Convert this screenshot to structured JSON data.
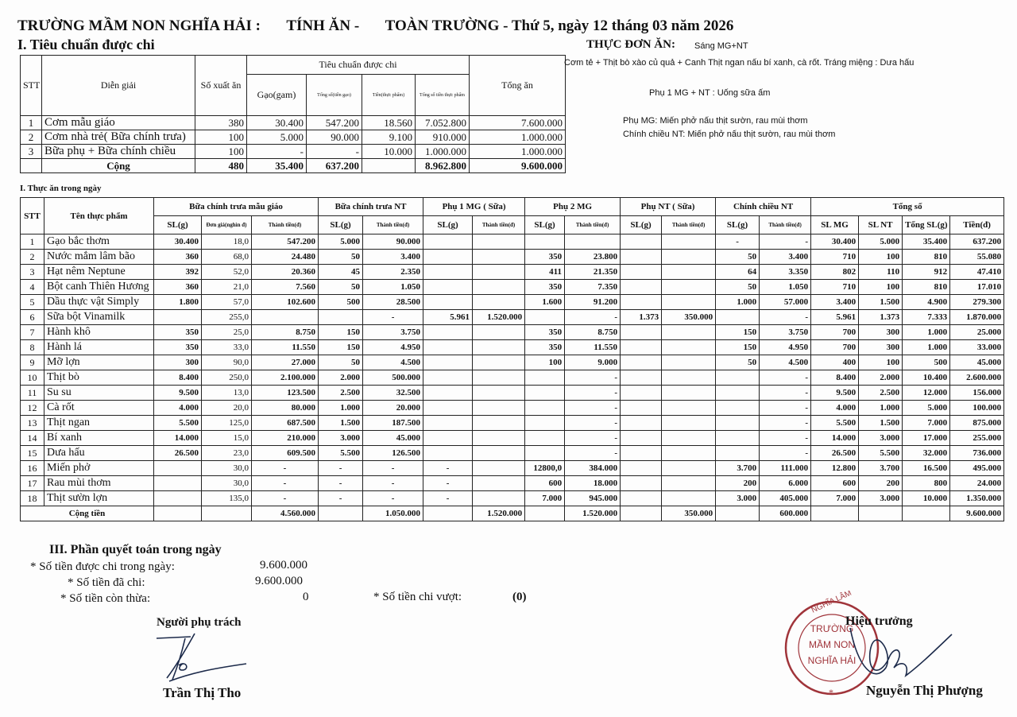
{
  "header": {
    "school": "TRƯỜNG MẦM NON NGHĨA HẢI  :",
    "label": "TÍNH ĂN -",
    "scope": "TOÀN TRƯỜNG - Thứ 5, ngày 12 tháng 03 năm 2026"
  },
  "section1": {
    "title": "I. Tiêu chuẩn được chi",
    "headers": {
      "stt": "STT",
      "dien_giai": "Diễn giải",
      "so_xuat": "Số xuất ăn",
      "group": "Tiêu chuẩn được chi",
      "gao": "Gạo(gam)",
      "tong_gao": "Tổng số(tiền gạo)",
      "tien_tp": "Tiền(thực phẩm)",
      "tong_tp": "Tổng số tiền thực phẩm",
      "tong_an": "Tổng ăn"
    },
    "rows": [
      [
        "1",
        "Cơm mẫu giáo",
        "380",
        "30.400",
        "547.200",
        "18.560",
        "7.052.800",
        "7.600.000"
      ],
      [
        "2",
        "Cơm nhà trẻ( Bữa chính trưa)",
        "100",
        "5.000",
        "90.000",
        "9.100",
        "910.000",
        "1.000.000"
      ],
      [
        "3",
        "Bữa phụ + Bữa chính chiều",
        "100",
        "-",
        "-",
        "10.000",
        "1.000.000",
        "1.000.000"
      ]
    ],
    "total": [
      "Cộng",
      "480",
      "35.400",
      "637.200",
      "",
      "8.962.800",
      "9.600.000"
    ]
  },
  "menu": {
    "title": "THỰC ĐƠN ĂN:",
    "morning": "Sáng MG+NT",
    "lunch": "Cơm tẻ + Thịt bò xào củ quả + Canh Thịt ngan nấu bí xanh, cà rốt. Tráng miệng : Dưa hấu",
    "snack1": "Phụ 1 MG + NT : Uống sữa ấm",
    "snack_mg": "Phụ MG: Miến phở nấu thịt sườn, rau mùi thơm",
    "dinner_nt": "Chính chiều NT:  Miến phở nấu thịt sườn, rau mùi thơm"
  },
  "section2": {
    "title": "I. Thực ăn trong ngày",
    "groups": [
      "STT",
      "Tên thực phẩm",
      "Bữa chính trưa mẫu giáo",
      "Bữa chính trưa NT",
      "Phụ 1 MG ( Sữa)",
      "Phụ 2 MG",
      "Phụ NT ( Sữa)",
      "Chính chiều NT",
      "Tổng số"
    ],
    "subheaders": [
      "SL(g)",
      "Đơn giá(nghìn đ)",
      "Thành tiền(đ)",
      "SL(g)",
      "Thành tiền(đ)",
      "SL(g)",
      "Thành tiền(đ)",
      "SL(g)",
      "Thành tiền(đ)",
      "SL(g)",
      "Thành tiền(đ)",
      "SL(g)",
      "Thành tiền(đ)",
      "SL MG",
      "SL NT",
      "Tổng SL(g)",
      "Tiền(đ)"
    ],
    "rows": [
      [
        "1",
        "Gạo bắc thơm",
        "30.400",
        "18,0",
        "547.200",
        "5.000",
        "90.000",
        "",
        "",
        "",
        "",
        "",
        "",
        "-",
        "-",
        "30.400",
        "5.000",
        "35.400",
        "637.200"
      ],
      [
        "2",
        "Nước mắm lâm bão",
        "360",
        "68,0",
        "24.480",
        "50",
        "3.400",
        "",
        "",
        "350",
        "23.800",
        "",
        "",
        "50",
        "3.400",
        "710",
        "100",
        "810",
        "55.080"
      ],
      [
        "3",
        "Hạt nêm Neptune",
        "392",
        "52,0",
        "20.360",
        "45",
        "2.350",
        "",
        "",
        "411",
        "21.350",
        "",
        "",
        "64",
        "3.350",
        "802",
        "110",
        "912",
        "47.410"
      ],
      [
        "4",
        "Bột canh Thiên Hương",
        "360",
        "21,0",
        "7.560",
        "50",
        "1.050",
        "",
        "",
        "350",
        "7.350",
        "",
        "",
        "50",
        "1.050",
        "710",
        "100",
        "810",
        "17.010"
      ],
      [
        "5",
        "Dầu thực vật Simply",
        "1.800",
        "57,0",
        "102.600",
        "500",
        "28.500",
        "",
        "",
        "1.600",
        "91.200",
        "",
        "",
        "1.000",
        "57.000",
        "3.400",
        "1.500",
        "4.900",
        "279.300"
      ],
      [
        "6",
        "Sữa bột Vinamilk",
        "",
        "255,0",
        "",
        "",
        "-",
        "5.961",
        "1.520.000",
        "",
        "-",
        "1.373",
        "350.000",
        "",
        "-",
        "5.961",
        "1.373",
        "7.333",
        "1.870.000"
      ],
      [
        "7",
        "Hành khô",
        "350",
        "25,0",
        "8.750",
        "150",
        "3.750",
        "",
        "",
        "350",
        "8.750",
        "",
        "",
        "150",
        "3.750",
        "700",
        "300",
        "1.000",
        "25.000"
      ],
      [
        "8",
        "Hành lá",
        "350",
        "33,0",
        "11.550",
        "150",
        "4.950",
        "",
        "",
        "350",
        "11.550",
        "",
        "",
        "150",
        "4.950",
        "700",
        "300",
        "1.000",
        "33.000"
      ],
      [
        "9",
        "Mỡ lợn",
        "300",
        "90,0",
        "27.000",
        "50",
        "4.500",
        "",
        "",
        "100",
        "9.000",
        "",
        "",
        "50",
        "4.500",
        "400",
        "100",
        "500",
        "45.000"
      ],
      [
        "10",
        "Thịt bò",
        "8.400",
        "250,0",
        "2.100.000",
        "2.000",
        "500.000",
        "",
        "",
        "",
        "-",
        "",
        "",
        "",
        "-",
        "8.400",
        "2.000",
        "10.400",
        "2.600.000"
      ],
      [
        "11",
        "Su su",
        "9.500",
        "13,0",
        "123.500",
        "2.500",
        "32.500",
        "",
        "",
        "",
        "-",
        "",
        "",
        "",
        "-",
        "9.500",
        "2.500",
        "12.000",
        "156.000"
      ],
      [
        "12",
        "Cà rốt",
        "4.000",
        "20,0",
        "80.000",
        "1.000",
        "20.000",
        "",
        "",
        "",
        "-",
        "",
        "",
        "",
        "-",
        "4.000",
        "1.000",
        "5.000",
        "100.000"
      ],
      [
        "13",
        "Thịt ngan",
        "5.500",
        "125,0",
        "687.500",
        "1.500",
        "187.500",
        "",
        "",
        "",
        "-",
        "",
        "",
        "",
        "-",
        "5.500",
        "1.500",
        "7.000",
        "875.000"
      ],
      [
        "14",
        "Bí xanh",
        "14.000",
        "15,0",
        "210.000",
        "3.000",
        "45.000",
        "",
        "",
        "",
        "-",
        "",
        "",
        "",
        "-",
        "14.000",
        "3.000",
        "17.000",
        "255.000"
      ],
      [
        "15",
        "Dưa hấu",
        "26.500",
        "23,0",
        "609.500",
        "5.500",
        "126.500",
        "",
        "",
        "",
        "-",
        "",
        "",
        "",
        "-",
        "26.500",
        "5.500",
        "32.000",
        "736.000"
      ],
      [
        "16",
        "Miến phở",
        "",
        "30,0",
        "-",
        "-",
        "-",
        "-",
        "",
        "12800,0",
        "384.000",
        "",
        "",
        "3.700",
        "111.000",
        "12.800",
        "3.700",
        "16.500",
        "495.000"
      ],
      [
        "17",
        "Rau mùi thơm",
        "",
        "30,0",
        "-",
        "-",
        "-",
        "-",
        "",
        "600",
        "18.000",
        "",
        "",
        "200",
        "6.000",
        "600",
        "200",
        "800",
        "24.000"
      ],
      [
        "18",
        "Thịt sườn lợn",
        "",
        "135,0",
        "-",
        "-",
        "-",
        "-",
        "",
        "7.000",
        "945.000",
        "",
        "",
        "3.000",
        "405.000",
        "7.000",
        "3.000",
        "10.000",
        "1.350.000"
      ]
    ],
    "total": [
      "Cộng tiền",
      "",
      "",
      "4.560.000",
      "",
      "1.050.000",
      "",
      "1.520.000",
      "",
      "1.520.000",
      "",
      "350.000",
      "",
      "600.000",
      "",
      "",
      "",
      "9.600.000"
    ]
  },
  "section3": {
    "title": "III. Phần quyết toán trong ngày",
    "allowed_label": "* Số tiền được chi trong ngày:",
    "allowed_value": "9.600.000",
    "spent_label": "* Số tiền đã chi:",
    "spent_value": "9.600.000",
    "remaining_label": "* Số tiền còn thừa:",
    "remaining_value": "0",
    "over_label": "* Số tiền chi vượt:",
    "over_value": "(0)"
  },
  "signatures": {
    "left_role": "Người phụ trách",
    "left_name": "Trần Thị Tho",
    "right_role": "Hiệu trưởng",
    "right_name": "Nguyễn Thị Phượng",
    "stamp": {
      "outer": "U.B.N.D XÃ NGHĨA LÂM TỈNH NINH BÌNH",
      "inner": [
        "TRƯỜNG",
        "MẦM NON",
        "NGHĨA HẢI"
      ],
      "color": "#a0343a"
    }
  },
  "colors": {
    "ink": "#111111",
    "stamp": "#a0343a",
    "signature": "#1c2a4a"
  }
}
